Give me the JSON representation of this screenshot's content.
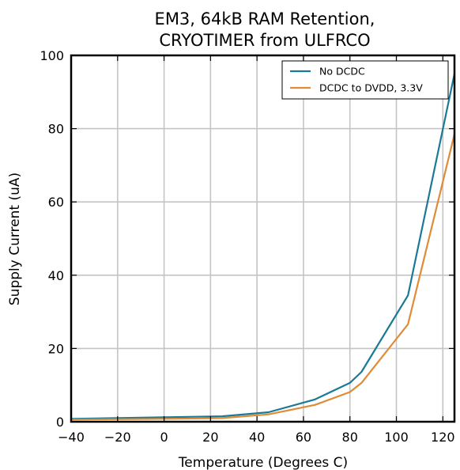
{
  "chart_data": {
    "type": "line",
    "title_lines": [
      "EM3, 64kB RAM Retention,",
      "CRYOTIMER from ULFRCO"
    ],
    "xlabel": "Temperature (Degrees C)",
    "ylabel": "Supply Current (uA)",
    "xlim": [
      -40,
      125
    ],
    "ylim": [
      0,
      100
    ],
    "xticks": [
      -40,
      -20,
      0,
      20,
      40,
      60,
      80,
      100,
      120
    ],
    "yticks": [
      0,
      20,
      40,
      60,
      80,
      100
    ],
    "grid": true,
    "legend_position": "top-right",
    "series": [
      {
        "name": "No DCDC",
        "color": "#1a7a96",
        "x": [
          -40,
          -20,
          0,
          25,
          45,
          65,
          80,
          85,
          105,
          125
        ],
        "y": [
          0.8,
          1.0,
          1.2,
          1.5,
          2.6,
          6.1,
          10.6,
          13.6,
          34.5,
          95
        ]
      },
      {
        "name": "DCDC to DVDD, 3.3V",
        "color": "#e08b35",
        "x": [
          -40,
          -20,
          0,
          25,
          45,
          65,
          80,
          85,
          105,
          125
        ],
        "y": [
          0.6,
          0.7,
          0.8,
          1.0,
          2.0,
          4.6,
          8.1,
          10.6,
          26.6,
          78.5
        ]
      }
    ]
  }
}
